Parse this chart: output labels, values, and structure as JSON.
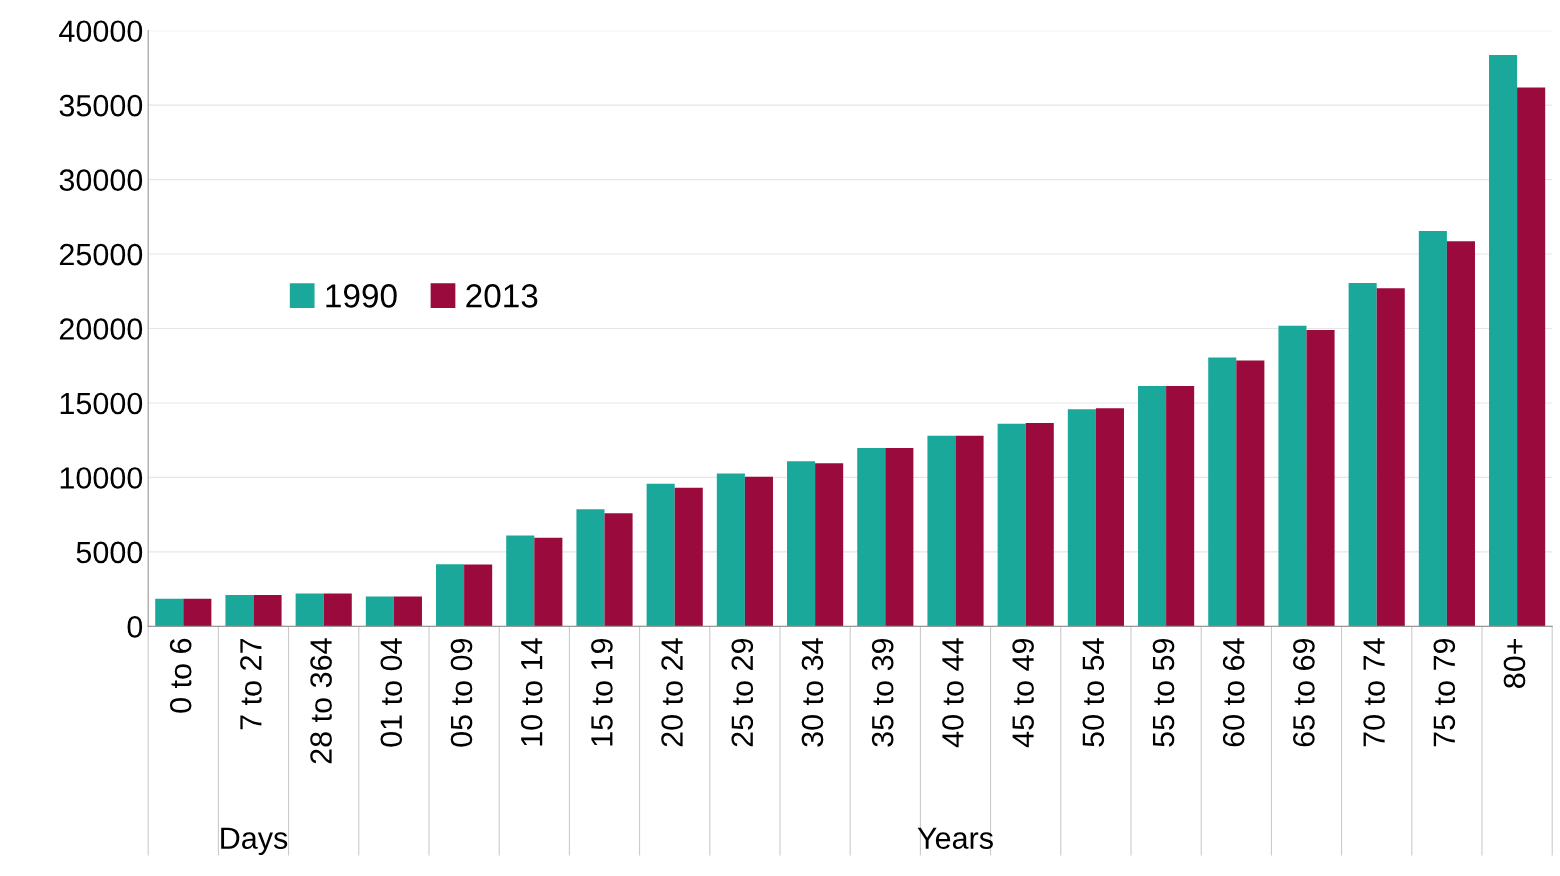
{
  "chart_data": {
    "type": "bar",
    "categories": [
      "0 to 6",
      "7 to 27",
      "28 to 364",
      "01 to 04",
      "05 to 09",
      "10 to 14",
      "15 to 19",
      "20 to 24",
      "25 to 29",
      "30 to 34",
      "35 to 39",
      "40 to 44",
      "45 to 49",
      "50 to 54",
      "55 to 59",
      "60 to 64",
      "65 to 69",
      "70 to 74",
      "75 to 79",
      "80+"
    ],
    "series": [
      {
        "name": "1990",
        "color": "#1aa89a",
        "values": [
          1850,
          2100,
          2200,
          2000,
          4170,
          6100,
          7870,
          9580,
          10260,
          11080,
          11970,
          12790,
          13600,
          14570,
          16140,
          18060,
          20180,
          23050,
          26540,
          38370
        ]
      },
      {
        "name": "2013",
        "color": "#9b0a3c",
        "values": [
          1850,
          2100,
          2200,
          2000,
          4150,
          5950,
          7600,
          9300,
          10050,
          10950,
          11970,
          12790,
          13650,
          14640,
          16140,
          17850,
          19900,
          22700,
          25860,
          36180
        ]
      }
    ],
    "ylim": [
      0,
      40000
    ],
    "yticks": [
      0,
      5000,
      10000,
      15000,
      20000,
      25000,
      30000,
      35000,
      40000
    ],
    "grid": "y",
    "legend": "left",
    "annotations": [
      "Days",
      "Years"
    ]
  }
}
